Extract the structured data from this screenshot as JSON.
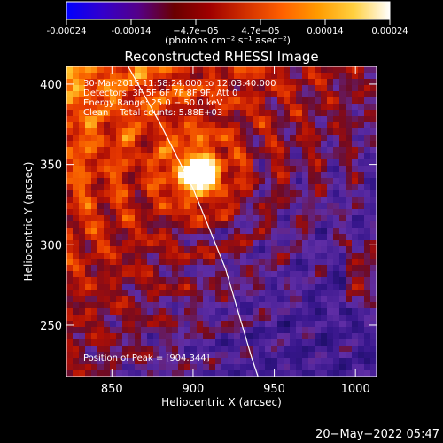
{
  "colorbar": {
    "ticks": [
      "-0.00024",
      "-0.00014",
      "−4.7e−05",
      "4.7e−05",
      "0.00014",
      "0.00024"
    ],
    "unit_label": "(photons cm⁻² s⁻¹ asec⁻²)",
    "stops": [
      "#0000ff",
      "#3300cc",
      "#550088",
      "#6a0000",
      "#a00000",
      "#d23000",
      "#ff6000",
      "#ff9b00",
      "#ffd040",
      "#ffffff"
    ]
  },
  "chart_data": {
    "type": "heatmap",
    "title": "Reconstructed RHESSI Image",
    "xlabel": "Heliocentric X (arcsec)",
    "ylabel": "Heliocentric Y (arcsec)",
    "xlim": [
      822,
      1013
    ],
    "ylim": [
      218,
      411
    ],
    "xticks": [
      850,
      900,
      950,
      1000
    ],
    "yticks": [
      250,
      300,
      350,
      400
    ],
    "color_range": [
      -0.00024,
      0.00024
    ],
    "peak": [
      904,
      344
    ],
    "limb_curve": [
      [
        860,
        411
      ],
      [
        880,
        375
      ],
      [
        900,
        335
      ],
      [
        920,
        285
      ],
      [
        936,
        230
      ],
      [
        940,
        218
      ]
    ],
    "info_lines": [
      "30-Mar-2015 11:58:24.000 to 12:03:40.000",
      "Detectors: 3F 5F 6F 7F 8F 9F, Att 0",
      "Energy Range: 25.0 − 50.0 keV",
      "Clean    Total counts: 5.88E+03"
    ],
    "peak_label": "Position of Peak = [904,344]"
  },
  "footer": {
    "date": "20−May−2022 05:47"
  }
}
